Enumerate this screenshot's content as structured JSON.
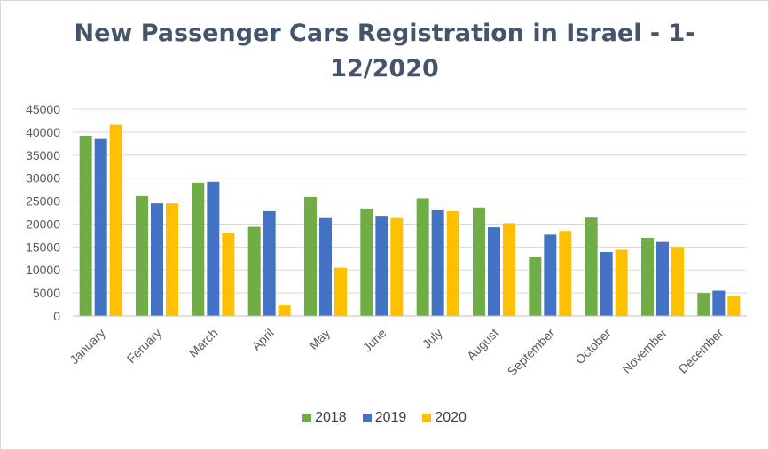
{
  "chart_data": {
    "type": "bar",
    "title_line1": "New Passenger Cars Registration in Israel - 1-",
    "title_line2": "12/2020",
    "categories": [
      "January",
      "Feruary",
      "March",
      "April",
      "May",
      "June",
      "July",
      "August",
      "September",
      "October",
      "November",
      "December"
    ],
    "series": [
      {
        "name": "2018",
        "color": "#70ad47",
        "values": [
          39200,
          26100,
          29000,
          19400,
          25900,
          23400,
          25600,
          23600,
          12900,
          21400,
          17000,
          5000
        ]
      },
      {
        "name": "2019",
        "color": "#4472c4",
        "values": [
          38500,
          24500,
          29200,
          22800,
          21300,
          21800,
          23000,
          19300,
          17700,
          13900,
          16100,
          5500
        ]
      },
      {
        "name": "2020",
        "color": "#ffc000",
        "values": [
          41600,
          24500,
          18100,
          2300,
          10500,
          21300,
          22800,
          20200,
          18500,
          14400,
          15000,
          4300
        ]
      }
    ],
    "yticks": [
      "0",
      "5000",
      "10000",
      "15000",
      "20000",
      "25000",
      "30000",
      "35000",
      "40000",
      "45000"
    ],
    "ylim": [
      0,
      45000
    ],
    "grid": true,
    "legend": "bottom"
  }
}
